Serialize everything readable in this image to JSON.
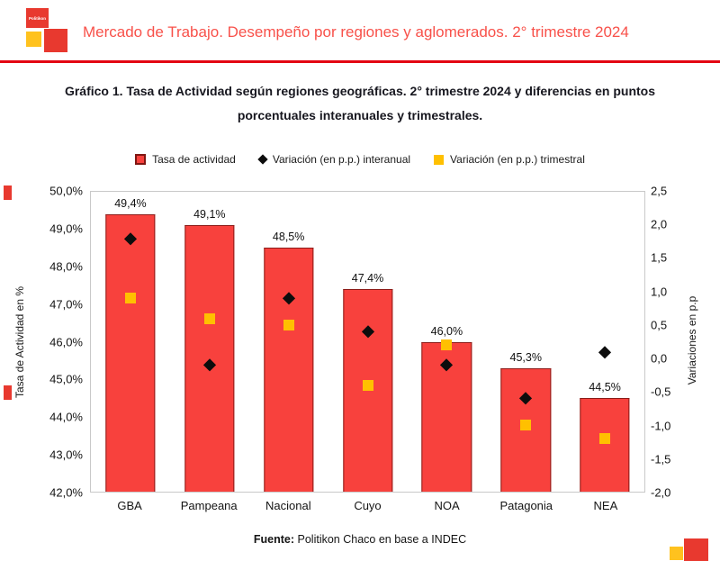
{
  "colors": {
    "logo_red": "#E8392F",
    "logo_yellow": "#FFC21E",
    "header_title_red": "#F8514A",
    "divider_red": "#E30613",
    "bar_fill": "#F8413D",
    "bar_border": "#8B1A17",
    "diamond_black": "#0D0D0D",
    "square_yellow": "#FFC000"
  },
  "header": {
    "brand": "Politikon",
    "title": "Mercado de Trabajo. Desempeño por regiones y aglomerados. 2° trimestre 2024"
  },
  "chart_title": {
    "line1": "Gráfico 1. Tasa de Actividad según regiones geográficas. 2° trimestre 2024 y diferencias en puntos",
    "line2": "porcentuales interanuales y trimestrales."
  },
  "footer": {
    "source_label": "Fuente:",
    "source_text": "Politikon Chaco en base a INDEC"
  },
  "chart_data": {
    "type": "bar",
    "title": "Gráfico 1. Tasa de Actividad según regiones geográficas. 2° trimestre 2024 y diferencias en puntos porcentuales interanuales y trimestrales.",
    "categories": [
      "GBA",
      "Pampeana",
      "Nacional",
      "Cuyo",
      "NOA",
      "Patagonia",
      "NEA"
    ],
    "series": [
      {
        "name": "Tasa de actividad",
        "mark": "bar",
        "axis": "left",
        "color": "#F8413D",
        "border_color": "#8B1A17",
        "values": [
          49.4,
          49.1,
          48.5,
          47.4,
          46.0,
          45.3,
          44.5
        ],
        "labels": [
          "49,4%",
          "49,1%",
          "48,5%",
          "47,4%",
          "46,0%",
          "45,3%",
          "44,5%"
        ]
      },
      {
        "name": "Variación (en p.p.) interanual",
        "mark": "diamond",
        "axis": "right",
        "color": "#0D0D0D",
        "values": [
          1.8,
          -0.1,
          0.9,
          0.4,
          -0.1,
          -0.6,
          0.1
        ]
      },
      {
        "name": "Variación (en p.p.) trimestral",
        "mark": "square",
        "axis": "right",
        "color": "#FFC000",
        "values": [
          0.9,
          0.6,
          0.5,
          -0.4,
          0.2,
          -1.0,
          -1.2
        ]
      }
    ],
    "left_axis": {
      "title": "Tasa de Actividad en %",
      "min": 42.0,
      "max": 50.0,
      "step": 1.0,
      "tick_labels": [
        "50,0%",
        "49,0%",
        "48,0%",
        "47,0%",
        "46,0%",
        "45,0%",
        "44,0%",
        "43,0%",
        "42,0%"
      ]
    },
    "right_axis": {
      "title": "Variaciones en p.p",
      "min": -2.0,
      "max": 2.5,
      "step": 0.5,
      "tick_labels": [
        "2,5",
        "2,0",
        "1,5",
        "1,0",
        "0,5",
        "0,0",
        "-0,5",
        "-1,0",
        "-1,5",
        "-2,0"
      ]
    },
    "legend_position": "top",
    "grid": false
  }
}
